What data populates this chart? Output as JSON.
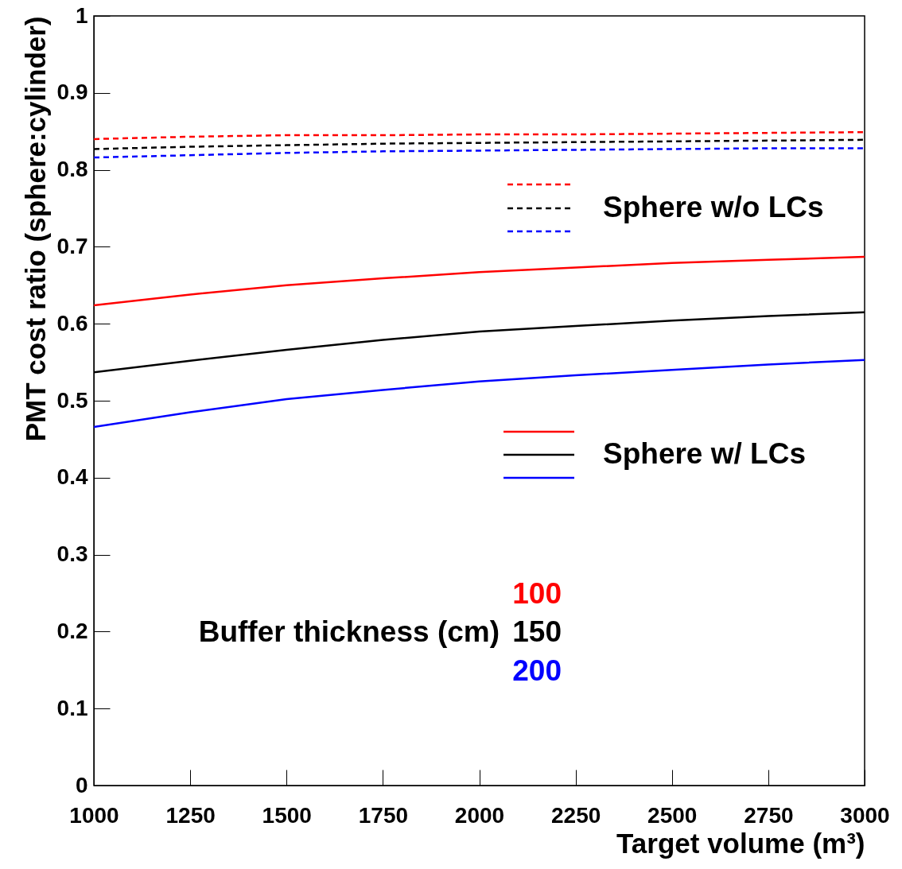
{
  "chart_data": {
    "type": "line",
    "xlabel": "Target volume (m³)",
    "ylabel": "PMT cost ratio (sphere:cylinder)",
    "x": [
      1000,
      1250,
      1500,
      1750,
      2000,
      2250,
      2500,
      2750,
      3000
    ],
    "xlim": [
      1000,
      3000
    ],
    "xticks": [
      1000,
      1250,
      1500,
      1750,
      2000,
      2250,
      2500,
      2750,
      3000
    ],
    "ylim": [
      0,
      1
    ],
    "yticks": [
      0,
      0.1,
      0.2,
      0.3,
      0.4,
      0.5,
      0.6,
      0.7,
      0.8,
      0.9,
      1
    ],
    "grid": false,
    "marker": "none",
    "series": [
      {
        "color": "#ff0000",
        "line_style": "dashed",
        "values": [
          0.84,
          0.843,
          0.845,
          0.845,
          0.846,
          0.846,
          0.847,
          0.848,
          0.849
        ]
      },
      {
        "color": "#000000",
        "line_style": "dashed",
        "values": [
          0.827,
          0.83,
          0.832,
          0.834,
          0.835,
          0.836,
          0.837,
          0.838,
          0.839
        ]
      },
      {
        "color": "#0000ff",
        "line_style": "dashed",
        "values": [
          0.816,
          0.819,
          0.822,
          0.824,
          0.825,
          0.826,
          0.827,
          0.828,
          0.828
        ]
      },
      {
        "color": "#ff0000",
        "line_style": "solid",
        "values": [
          0.624,
          0.638,
          0.65,
          0.659,
          0.667,
          0.673,
          0.679,
          0.683,
          0.687
        ]
      },
      {
        "color": "#000000",
        "line_style": "solid",
        "values": [
          0.537,
          0.552,
          0.566,
          0.579,
          0.59,
          0.597,
          0.604,
          0.61,
          0.615
        ]
      },
      {
        "color": "#0000ff",
        "line_style": "solid",
        "values": [
          0.466,
          0.485,
          0.502,
          0.514,
          0.525,
          0.533,
          0.54,
          0.547,
          0.553
        ]
      }
    ],
    "annotations": [
      "Sphere w/o LCs",
      "Sphere w/ LCs",
      "Buffer thickness (cm)",
      "100",
      "150",
      "200"
    ]
  }
}
